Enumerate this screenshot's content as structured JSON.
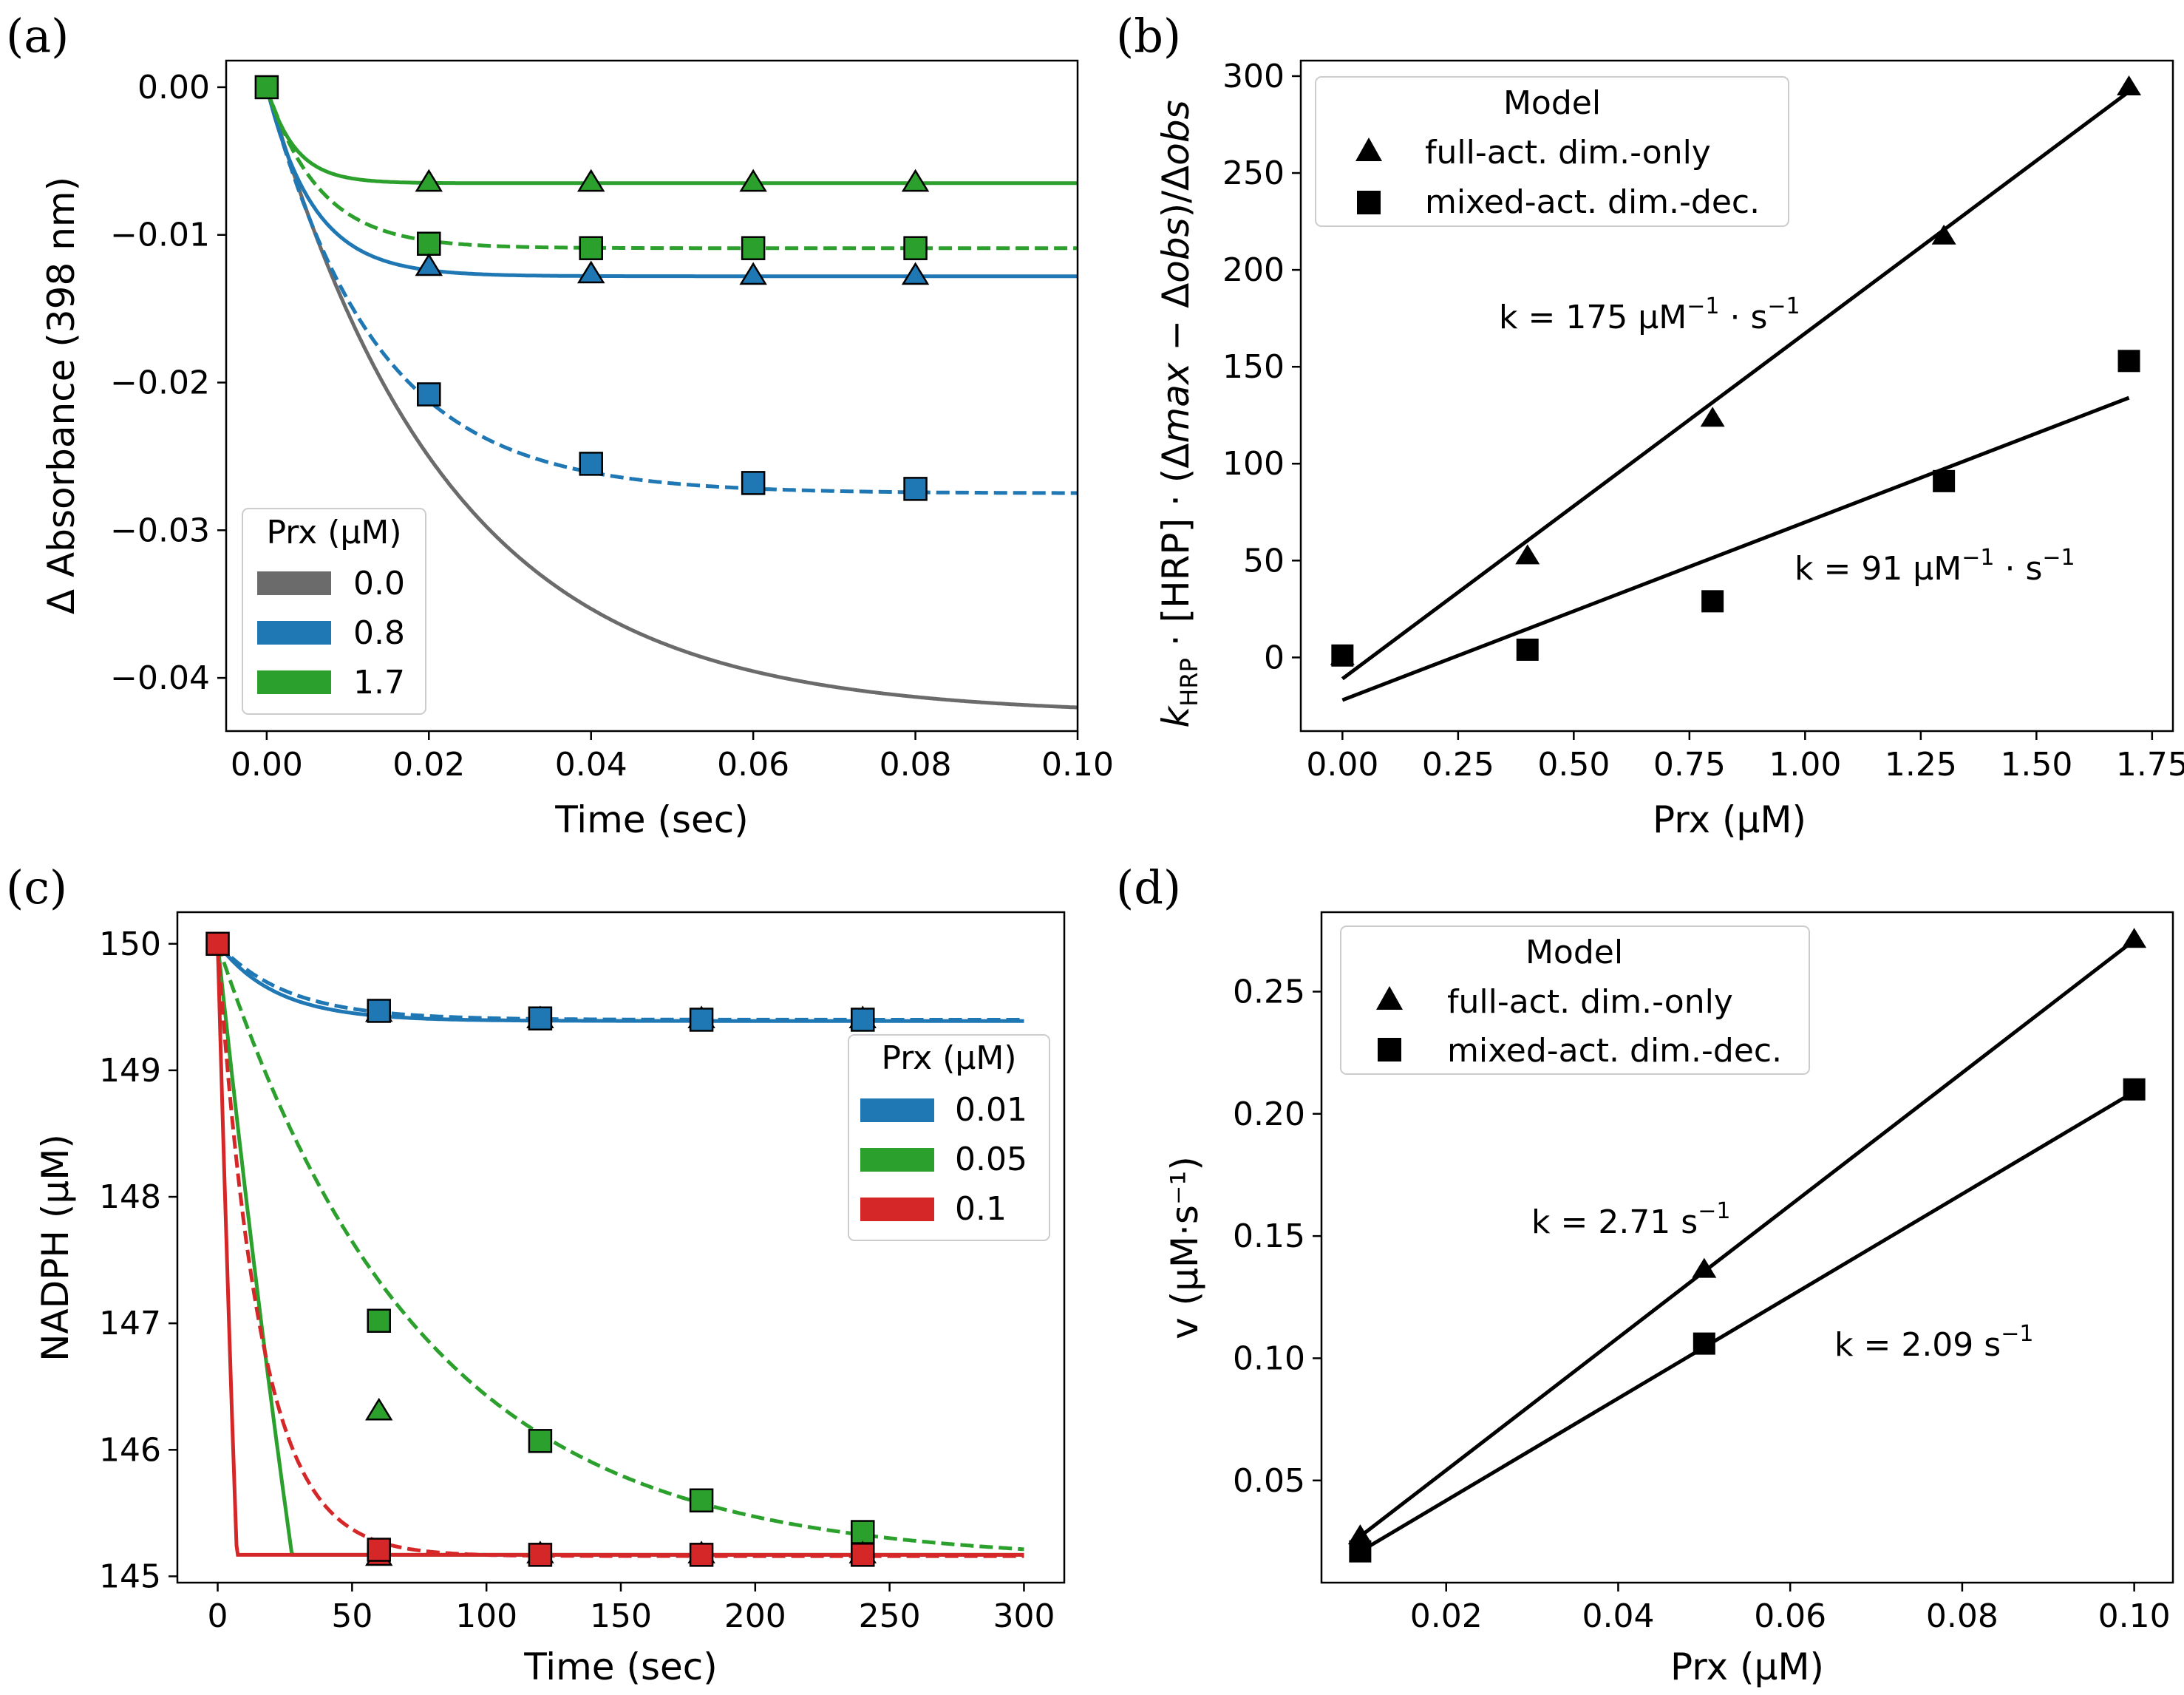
{
  "figure": {
    "panel_labels": [
      "(a)",
      "(b)",
      "(c)",
      "(d)"
    ]
  },
  "chart_data": [
    {
      "id": "a",
      "type": "line",
      "panel_label": "(a)",
      "xlabel": "Time (sec)",
      "ylabel": "Δ Absorbance (398 nm)",
      "xlim": [
        -0.005,
        0.1
      ],
      "ylim": [
        -0.0436,
        0.0018
      ],
      "xticks": [
        0.0,
        0.02,
        0.04,
        0.06,
        0.08,
        0.1
      ],
      "xtick_labels": [
        "0.00",
        "0.02",
        "0.04",
        "0.06",
        "0.08",
        "0.10"
      ],
      "yticks": [
        0.0,
        -0.01,
        -0.02,
        -0.03,
        -0.04
      ],
      "ytick_labels": [
        "0.00",
        "−0.01",
        "−0.02",
        "−0.03",
        "−0.04"
      ],
      "legend": {
        "title": "Prx (μM)",
        "position": "lower-left",
        "entries": [
          {
            "label": "0.0",
            "color": "#6b6b6b"
          },
          {
            "label": "0.8",
            "color": "#1f77b4"
          },
          {
            "label": "1.7",
            "color": "#2ca02c"
          }
        ]
      },
      "curves": [
        {
          "name": "0.0",
          "color": "#6b6b6b",
          "dash": false,
          "model": "exp",
          "y_inf": -0.0425,
          "tau": 0.0225,
          "x_end": 0.1
        },
        {
          "name": "0.8 full-act. dim.-only",
          "color": "#1f77b4",
          "dash": false,
          "model": "exp",
          "y_inf": -0.0128,
          "tau": 0.0058,
          "x_end": 0.1
        },
        {
          "name": "0.8 mixed-act. dim.-dec.",
          "color": "#1f77b4",
          "dash": true,
          "model": "exp",
          "y_inf": -0.0275,
          "tau": 0.0135,
          "x_end": 0.1
        },
        {
          "name": "1.7 full-act. dim.-only",
          "color": "#2ca02c",
          "dash": false,
          "model": "exp",
          "y_inf": -0.0065,
          "tau": 0.0035,
          "x_end": 0.1
        },
        {
          "name": "1.7 mixed-act. dim.-dec.",
          "color": "#2ca02c",
          "dash": true,
          "model": "exp",
          "y_inf": -0.0109,
          "tau": 0.0065,
          "x_end": 0.1
        }
      ],
      "markers": [
        {
          "x": 0.0,
          "y": 0.0,
          "shape": "square",
          "color": "#2ca02c"
        },
        {
          "x": 0.02,
          "y": -0.0065,
          "shape": "triangle",
          "color": "#2ca02c"
        },
        {
          "x": 0.04,
          "y": -0.0065,
          "shape": "triangle",
          "color": "#2ca02c"
        },
        {
          "x": 0.06,
          "y": -0.0065,
          "shape": "triangle",
          "color": "#2ca02c"
        },
        {
          "x": 0.08,
          "y": -0.0065,
          "shape": "triangle",
          "color": "#2ca02c"
        },
        {
          "x": 0.02,
          "y": -0.0106,
          "shape": "square",
          "color": "#2ca02c"
        },
        {
          "x": 0.04,
          "y": -0.0109,
          "shape": "square",
          "color": "#2ca02c"
        },
        {
          "x": 0.06,
          "y": -0.0109,
          "shape": "square",
          "color": "#2ca02c"
        },
        {
          "x": 0.08,
          "y": -0.0109,
          "shape": "square",
          "color": "#2ca02c"
        },
        {
          "x": 0.02,
          "y": -0.0122,
          "shape": "triangle",
          "color": "#1f77b4"
        },
        {
          "x": 0.04,
          "y": -0.0127,
          "shape": "triangle",
          "color": "#1f77b4"
        },
        {
          "x": 0.06,
          "y": -0.0128,
          "shape": "triangle",
          "color": "#1f77b4"
        },
        {
          "x": 0.08,
          "y": -0.0128,
          "shape": "triangle",
          "color": "#1f77b4"
        },
        {
          "x": 0.02,
          "y": -0.0208,
          "shape": "square",
          "color": "#1f77b4"
        },
        {
          "x": 0.04,
          "y": -0.0255,
          "shape": "square",
          "color": "#1f77b4"
        },
        {
          "x": 0.06,
          "y": -0.0268,
          "shape": "square",
          "color": "#1f77b4"
        },
        {
          "x": 0.08,
          "y": -0.0272,
          "shape": "square",
          "color": "#1f77b4"
        }
      ]
    },
    {
      "id": "b",
      "type": "scatter",
      "panel_label": "(b)",
      "xlabel": "Prx (μM)",
      "ylabel": "k_HRP · [HRP] · (Δmax − Δobs)/Δobs",
      "xlim": [
        -0.09,
        1.795
      ],
      "ylim": [
        -38,
        308
      ],
      "xticks": [
        0,
        0.25,
        0.5,
        0.75,
        1.0,
        1.25,
        1.5,
        1.75
      ],
      "xtick_labels": [
        "0.00",
        "0.25",
        "0.50",
        "0.75",
        "1.00",
        "1.25",
        "1.50",
        "1.75"
      ],
      "yticks": [
        0,
        50,
        100,
        150,
        200,
        250,
        300
      ],
      "ytick_labels": [
        "0",
        "50",
        "100",
        "150",
        "200",
        "250",
        "300"
      ],
      "legend": {
        "title": "Model",
        "position": "upper-left",
        "entries": [
          {
            "label": "full-act. dim.-only",
            "shape": "triangle"
          },
          {
            "label": "mixed-act. dim.-dec.",
            "shape": "square"
          }
        ]
      },
      "series": [
        {
          "name": "full-act. dim.-only",
          "shape": "triangle",
          "x": [
            0.0,
            0.4,
            0.8,
            1.3,
            1.7
          ],
          "y": [
            0,
            52,
            123,
            217,
            294
          ]
        },
        {
          "name": "mixed-act. dim.-dec.",
          "shape": "square",
          "x": [
            0.0,
            0.4,
            0.8,
            1.3,
            1.7
          ],
          "y": [
            1,
            4,
            29,
            91,
            153
          ]
        }
      ],
      "fit_lines": [
        {
          "name": "full-act. dim.-only fit",
          "x": [
            0.0,
            1.7
          ],
          "y": [
            -11,
            292
          ]
        },
        {
          "name": "mixed-act. dim.-dec. fit",
          "x": [
            0.0,
            1.7
          ],
          "y": [
            -22,
            134
          ]
        }
      ],
      "annotations": [
        {
          "prefix": "k = 175 μM",
          "exponent": "−1",
          "suffix": " · s",
          "suffix_exponent": "−1"
        },
        {
          "prefix": "k = 91 μM",
          "exponent": "−1",
          "suffix": " · s",
          "suffix_exponent": "−1"
        }
      ]
    },
    {
      "id": "c",
      "type": "line",
      "panel_label": "(c)",
      "xlabel": "Time (sec)",
      "ylabel": "NADPH (μM)",
      "xlim": [
        -15,
        315
      ],
      "ylim": [
        144.95,
        150.25
      ],
      "xticks": [
        0,
        50,
        100,
        150,
        200,
        250,
        300
      ],
      "xtick_labels": [
        "0",
        "50",
        "100",
        "150",
        "200",
        "250",
        "300"
      ],
      "yticks": [
        145,
        146,
        147,
        148,
        149,
        150
      ],
      "ytick_labels": [
        "145",
        "146",
        "147",
        "148",
        "149",
        "150"
      ],
      "legend": {
        "title": "Prx (μM)",
        "position": "center-right",
        "entries": [
          {
            "label": "0.01",
            "color": "#1f77b4"
          },
          {
            "label": "0.05",
            "color": "#2ca02c"
          },
          {
            "label": "0.1",
            "color": "#d62728"
          }
        ]
      },
      "curves": [
        {
          "name": "0.01 full-act. dim.-only",
          "color": "#1f77b4",
          "dash": false,
          "model": "exp",
          "y0": 150,
          "y_inf": 149.39,
          "tau": 22,
          "x_end": 300
        },
        {
          "name": "0.01 mixed-act. dim.-dec.",
          "color": "#1f77b4",
          "dash": true,
          "model": "exp",
          "y0": 150,
          "y_inf": 149.4,
          "tau": 26,
          "x_end": 300
        },
        {
          "name": "0.05 full-act. dim.-only",
          "color": "#2ca02c",
          "dash": false,
          "model": "clip",
          "y0": 150,
          "floor": 145.17,
          "tau": 100,
          "y_inf": 130,
          "x_end": 300
        },
        {
          "name": "0.05 mixed-act. dim.-dec.",
          "color": "#2ca02c",
          "dash": true,
          "model": "exp",
          "y0": 150,
          "y_inf": 145.12,
          "tau": 76,
          "x_end": 300
        },
        {
          "name": "0.1 full-act. dim.-only",
          "color": "#d62728",
          "dash": false,
          "model": "clip",
          "y0": 150,
          "floor": 145.17,
          "tau": 28,
          "y_inf": 128.5,
          "x_end": 300
        },
        {
          "name": "0.1 mixed-act. dim.-dec.",
          "color": "#d62728",
          "dash": true,
          "model": "exp",
          "y0": 150,
          "y_inf": 145.16,
          "tau": 16,
          "x_end": 300
        }
      ],
      "markers": [
        {
          "x": 60,
          "y": 146.3,
          "shape": "triangle",
          "color": "#2ca02c"
        },
        {
          "x": 60,
          "y": 147.02,
          "shape": "square",
          "color": "#2ca02c"
        },
        {
          "x": 120,
          "y": 146.07,
          "shape": "square",
          "color": "#2ca02c"
        },
        {
          "x": 180,
          "y": 145.6,
          "shape": "square",
          "color": "#2ca02c"
        },
        {
          "x": 240,
          "y": 145.35,
          "shape": "square",
          "color": "#2ca02c"
        },
        {
          "x": 60,
          "y": 145.15,
          "shape": "triangle",
          "color": "#d62728"
        },
        {
          "x": 120,
          "y": 145.17,
          "shape": "triangle",
          "color": "#d62728"
        },
        {
          "x": 180,
          "y": 145.17,
          "shape": "triangle",
          "color": "#d62728"
        },
        {
          "x": 240,
          "y": 145.17,
          "shape": "triangle",
          "color": "#d62728"
        },
        {
          "x": 60,
          "y": 145.21,
          "shape": "square",
          "color": "#d62728"
        },
        {
          "x": 120,
          "y": 145.17,
          "shape": "square",
          "color": "#d62728"
        },
        {
          "x": 180,
          "y": 145.17,
          "shape": "square",
          "color": "#d62728"
        },
        {
          "x": 240,
          "y": 145.17,
          "shape": "square",
          "color": "#d62728"
        },
        {
          "x": 60,
          "y": 149.45,
          "shape": "triangle",
          "color": "#1f77b4"
        },
        {
          "x": 120,
          "y": 149.4,
          "shape": "triangle",
          "color": "#1f77b4"
        },
        {
          "x": 180,
          "y": 149.4,
          "shape": "triangle",
          "color": "#1f77b4"
        },
        {
          "x": 240,
          "y": 149.4,
          "shape": "triangle",
          "color": "#1f77b4"
        },
        {
          "x": 60,
          "y": 149.47,
          "shape": "square",
          "color": "#1f77b4"
        },
        {
          "x": 120,
          "y": 149.41,
          "shape": "square",
          "color": "#1f77b4"
        },
        {
          "x": 180,
          "y": 149.4,
          "shape": "square",
          "color": "#1f77b4"
        },
        {
          "x": 240,
          "y": 149.4,
          "shape": "square",
          "color": "#1f77b4"
        },
        {
          "x": 0,
          "y": 150,
          "shape": "square",
          "color": "#d62728"
        }
      ]
    },
    {
      "id": "d",
      "type": "scatter",
      "panel_label": "(d)",
      "xlabel": "Prx (μM)",
      "ylabel": "v (μM·s⁻¹)",
      "xlabel_raw": "Prx (μM)",
      "xlim": [
        0.0055,
        0.1045
      ],
      "ylim": [
        0.0082,
        0.2825
      ],
      "xticks": [
        0.02,
        0.04,
        0.06,
        0.08,
        0.1
      ],
      "xtick_labels": [
        "0.02",
        "0.04",
        "0.06",
        "0.08",
        "0.10"
      ],
      "yticks": [
        0.05,
        0.1,
        0.15,
        0.2,
        0.25
      ],
      "ytick_labels": [
        "0.05",
        "0.10",
        "0.15",
        "0.20",
        "0.25"
      ],
      "legend": {
        "title": "Model",
        "position": "upper-left",
        "entries": [
          {
            "label": "full-act. dim.-only",
            "shape": "triangle"
          },
          {
            "label": "mixed-act. dim.-dec.",
            "shape": "square"
          }
        ]
      },
      "series": [
        {
          "name": "full-act. dim.-only",
          "shape": "triangle",
          "x": [
            0.01,
            0.05,
            0.1
          ],
          "y": [
            0.027,
            0.136,
            0.271
          ]
        },
        {
          "name": "mixed-act. dim.-dec.",
          "shape": "square",
          "x": [
            0.01,
            0.05,
            0.1
          ],
          "y": [
            0.021,
            0.106,
            0.21
          ]
        }
      ],
      "fit_lines": [
        {
          "name": "full-act. dim.-only fit",
          "x": [
            0.01,
            0.1
          ],
          "y": [
            0.0271,
            0.271
          ]
        },
        {
          "name": "mixed-act. dim.-dec. fit",
          "x": [
            0.01,
            0.1
          ],
          "y": [
            0.0209,
            0.209
          ]
        }
      ],
      "annotations": [
        {
          "prefix": "k = 2.71 s",
          "exponent": "−1"
        },
        {
          "prefix": "k = 2.09 s",
          "exponent": "−1"
        }
      ]
    }
  ]
}
